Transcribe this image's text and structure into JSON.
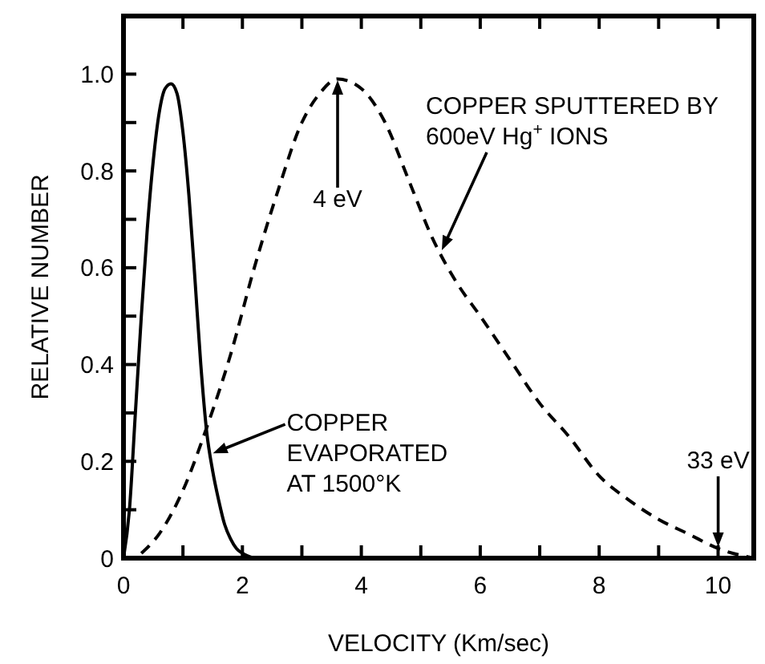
{
  "chart_data": {
    "type": "line",
    "xlabel": "VELOCITY (Km/sec)",
    "ylabel": "RELATIVE NUMBER",
    "xlim": [
      0,
      10.6
    ],
    "ylim": [
      0,
      1.12
    ],
    "xticks": [
      0,
      {
        "value": 1,
        "label": null
      },
      2,
      {
        "value": 3,
        "label": null
      },
      4,
      {
        "value": 5,
        "label": null
      },
      6,
      {
        "value": 7,
        "label": null
      },
      8,
      {
        "value": 9,
        "label": null
      },
      10
    ],
    "yticks": [
      0,
      {
        "value": 0.1,
        "label": null
      },
      0.2,
      {
        "value": 0.3,
        "label": null
      },
      0.4,
      {
        "value": 0.5,
        "label": null
      },
      0.6,
      {
        "value": 0.7,
        "label": null
      },
      0.8,
      {
        "value": 0.9,
        "label": null
      },
      {
        "value": 1,
        "label": "1.0"
      }
    ],
    "grid": false,
    "marker": "none",
    "series": [
      {
        "color": "#000000",
        "line_style": "solid",
        "x": [
          0,
          0.1,
          0.2,
          0.3,
          0.4,
          0.5,
          0.6,
          0.7,
          0.8,
          0.9,
          1.0,
          1.1,
          1.2,
          1.3,
          1.4,
          1.5,
          1.6,
          1.7,
          1.8,
          1.9,
          2.0,
          2.2
        ],
        "values": [
          0,
          0.1,
          0.3,
          0.5,
          0.68,
          0.82,
          0.92,
          0.97,
          0.98,
          0.96,
          0.88,
          0.75,
          0.58,
          0.4,
          0.26,
          0.18,
          0.12,
          0.07,
          0.04,
          0.02,
          0.01,
          0
        ]
      },
      {
        "color": "#000000",
        "line_style": "dashed",
        "x": [
          0.3,
          0.6,
          1.0,
          1.4,
          1.8,
          2.2,
          2.6,
          3.0,
          3.3,
          3.6,
          4.0,
          4.4,
          4.8,
          5.2,
          5.6,
          6.0,
          6.5,
          7.0,
          7.5,
          8.0,
          8.5,
          9.0,
          9.5,
          10.0,
          10.6
        ],
        "values": [
          0.01,
          0.05,
          0.14,
          0.27,
          0.42,
          0.6,
          0.76,
          0.9,
          0.96,
          0.99,
          0.97,
          0.9,
          0.78,
          0.66,
          0.57,
          0.5,
          0.41,
          0.32,
          0.25,
          0.17,
          0.12,
          0.08,
          0.05,
          0.02,
          0
        ]
      }
    ],
    "annotations": [
      "4 eV",
      "33 eV",
      "COPPER SPUTTERED BY\n600eV Hg$^{+}$ IONS",
      "COPPER\nEVAPORATED\nAT 1500°K"
    ]
  }
}
